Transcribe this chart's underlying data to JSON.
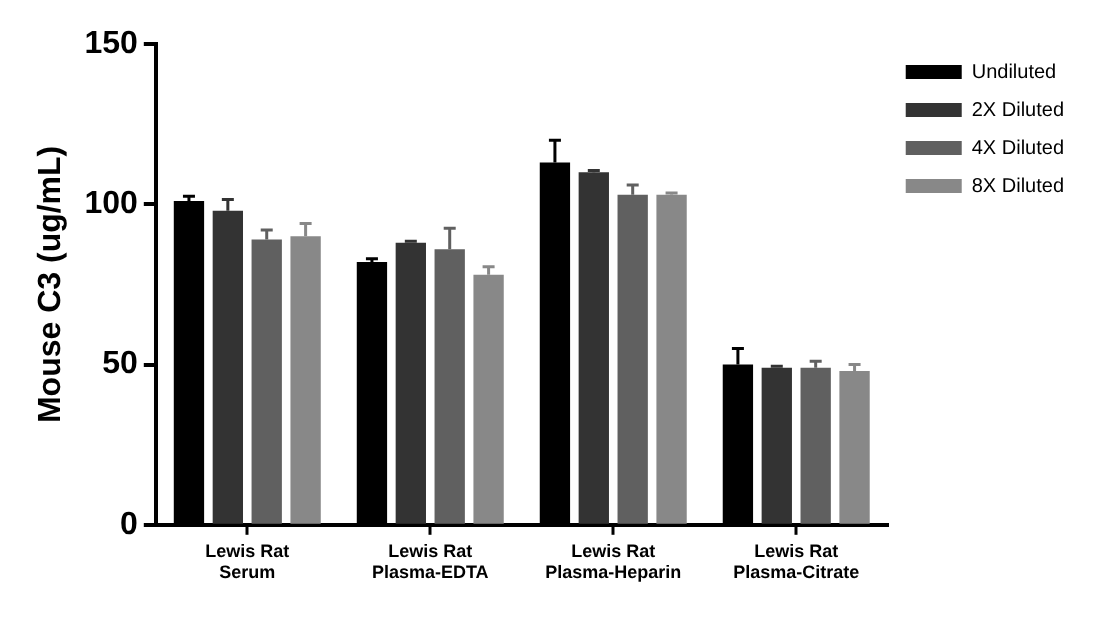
{
  "chart_data": {
    "type": "bar",
    "ylabel": "Mouse C3 (ug/mL)",
    "categories": [
      "Lewis Rat\nSerum",
      "Lewis Rat\nPlasma-EDTA",
      "Lewis Rat\nPlasma-Heparin",
      "Lewis Rat\nPlasma-Citrate"
    ],
    "series": [
      {
        "name": "Undiluted",
        "color": "#000000",
        "values": [
          101,
          82,
          113,
          50
        ],
        "errors": [
          [
            101,
            102.5
          ],
          [
            82,
            83
          ],
          [
            113,
            120
          ],
          [
            50,
            55
          ]
        ]
      },
      {
        "name": "2X Diluted",
        "color": "#333333",
        "values": [
          98,
          88,
          110,
          49
        ],
        "errors": [
          [
            98,
            101.5
          ],
          [
            88,
            88.5
          ],
          [
            110,
            110.5
          ],
          [
            49,
            49.5
          ]
        ]
      },
      {
        "name": "4X Diluted",
        "color": "#606060",
        "values": [
          89,
          86,
          103,
          49
        ],
        "errors": [
          [
            89,
            92
          ],
          [
            86,
            92.5
          ],
          [
            103,
            106
          ],
          [
            49,
            51
          ]
        ]
      },
      {
        "name": "8X Diluted",
        "color": "#888888",
        "values": [
          90,
          78,
          103,
          48
        ],
        "errors": [
          [
            90,
            94
          ],
          [
            78,
            80.5
          ],
          [
            103,
            103.5
          ],
          [
            48,
            50
          ]
        ]
      }
    ],
    "ylim": [
      0,
      150
    ],
    "yticks": [
      0,
      50,
      100,
      150
    ],
    "grid": false,
    "legend": "top right"
  }
}
